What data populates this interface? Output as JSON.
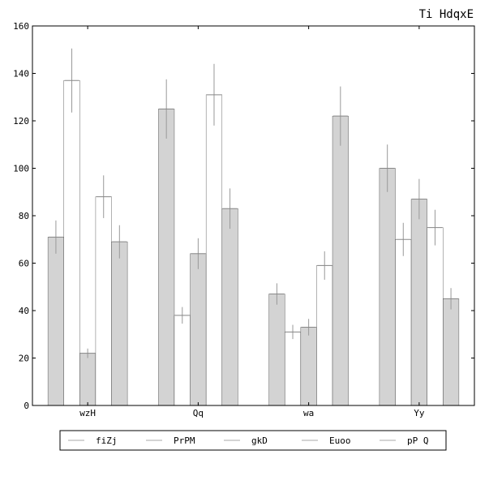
{
  "chart_data": {
    "type": "bar",
    "title": "Ti HdqxE",
    "xlabel": "",
    "ylabel": "",
    "ylim": [
      0,
      160
    ],
    "yticks": [
      0,
      20,
      40,
      60,
      80,
      100,
      120,
      140,
      160
    ],
    "categories": [
      "wzH",
      "Qq",
      "wa",
      "Yy"
    ],
    "grid": false,
    "legend_position": "bottom",
    "series": [
      {
        "name": "fiZj",
        "fill": "#d3d3d3",
        "values": [
          71,
          125,
          47,
          100
        ],
        "errors": [
          7,
          12.5,
          4.5,
          10
        ]
      },
      {
        "name": "PrPM",
        "fill": "#ffffff",
        "values": [
          137,
          38,
          31,
          70
        ],
        "errors": [
          13.5,
          3.5,
          3,
          7
        ]
      },
      {
        "name": "gkD",
        "fill": "#d3d3d3",
        "values": [
          22,
          64,
          33,
          87
        ],
        "errors": [
          2,
          6.5,
          3.5,
          8.5
        ]
      },
      {
        "name": "Euoo",
        "fill": "#ffffff",
        "values": [
          88,
          131,
          59,
          75
        ],
        "errors": [
          9,
          13,
          6,
          7.5
        ]
      },
      {
        "name": "pP Q",
        "fill": "#d3d3d3",
        "values": [
          69,
          83,
          122,
          45
        ],
        "errors": [
          7,
          8.5,
          12.5,
          4.5
        ]
      }
    ]
  }
}
